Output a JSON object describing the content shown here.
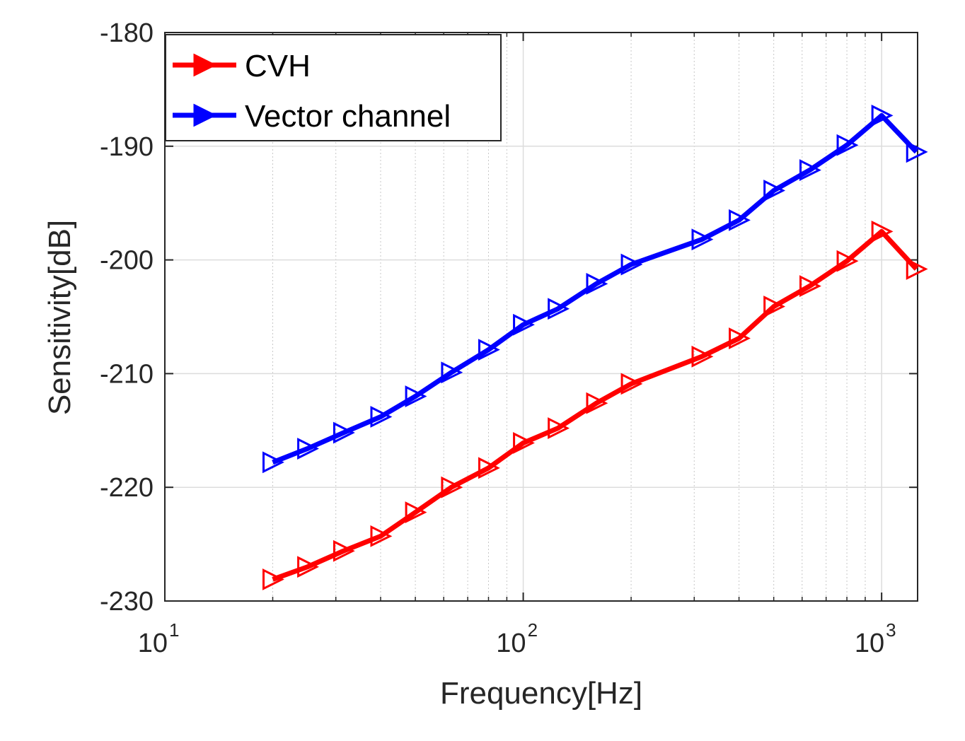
{
  "chart_data": {
    "type": "line",
    "xscale": "log",
    "xlabel": "Frequency[Hz]",
    "ylabel": "Sensitivity[dB]",
    "xlim": [
      10,
      1260
    ],
    "ylim": [
      -230,
      -180
    ],
    "yticks": [
      -230,
      -220,
      -210,
      -200,
      -190,
      -180
    ],
    "xticks": [
      {
        "value": 10,
        "base": "10",
        "exp": "1"
      },
      {
        "value": 100,
        "base": "10",
        "exp": "2"
      },
      {
        "value": 1000,
        "base": "10",
        "exp": "3"
      }
    ],
    "grid": true,
    "legend_position": "top-left",
    "x": [
      20,
      25,
      31.5,
      40,
      50,
      63,
      80,
      100,
      125,
      160,
      200,
      315,
      400,
      500,
      630,
      800,
      1000,
      1250
    ],
    "series": [
      {
        "name": "CVH",
        "color": "#ff0000",
        "values": [
          -228.1,
          -227.0,
          -225.6,
          -224.3,
          -222.2,
          -220.0,
          -218.3,
          -216.1,
          -214.8,
          -212.6,
          -210.9,
          -208.5,
          -206.9,
          -204.1,
          -202.3,
          -200.1,
          -197.5,
          -200.8
        ]
      },
      {
        "name": "Vector channel",
        "color": "#0000ff",
        "values": [
          -217.8,
          -216.6,
          -215.2,
          -213.8,
          -212.0,
          -209.9,
          -207.9,
          -205.7,
          -204.3,
          -202.1,
          -200.4,
          -198.2,
          -196.5,
          -193.9,
          -192.1,
          -189.9,
          -187.3,
          -190.5
        ]
      }
    ]
  }
}
